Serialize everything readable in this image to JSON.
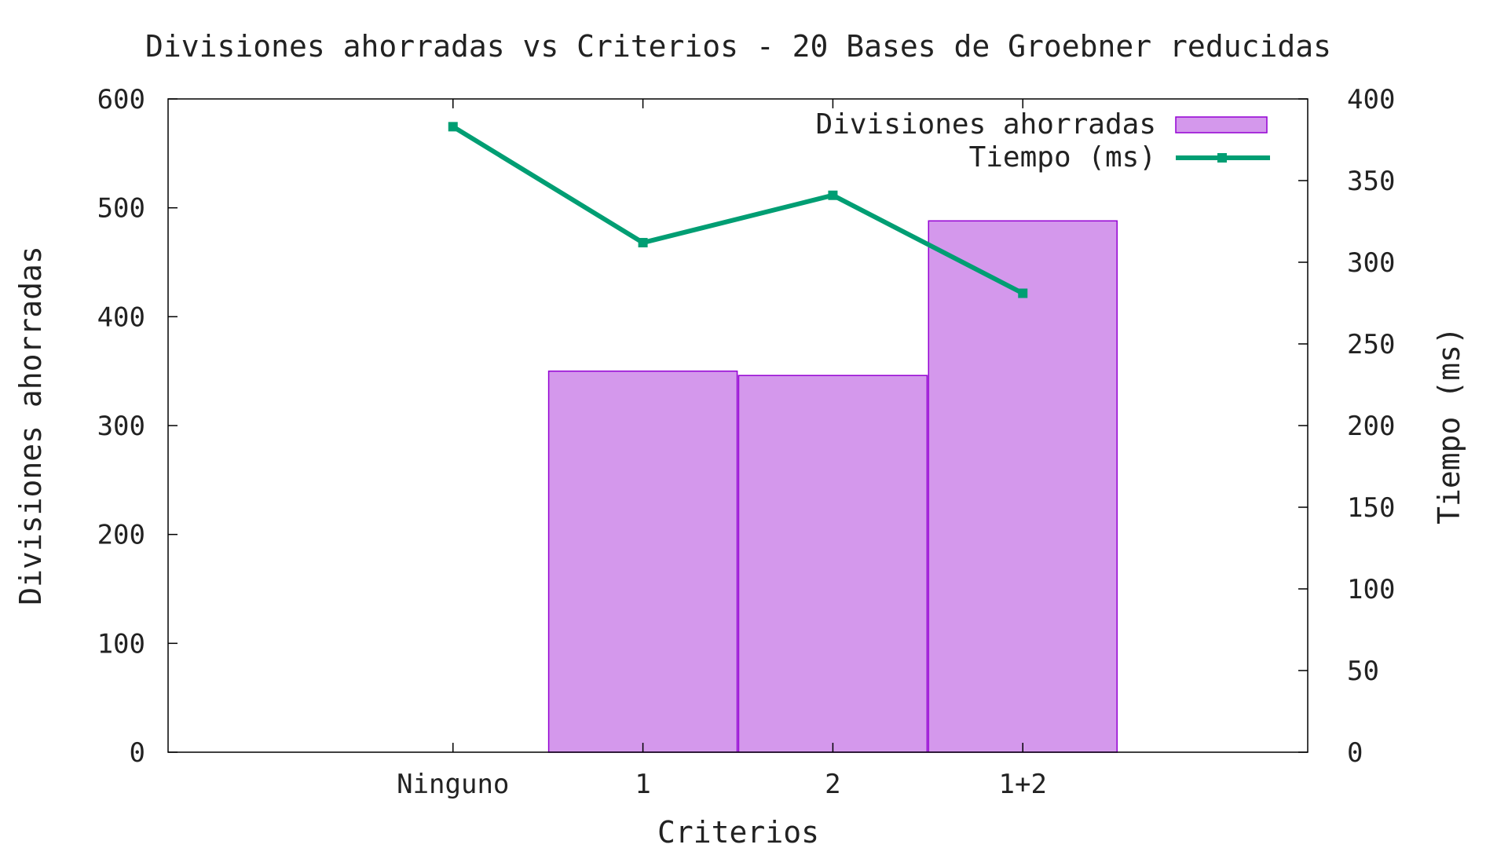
{
  "chart_data": {
    "type": "bar",
    "title": "Divisiones ahorradas vs Criterios - 20 Bases de Groebner reducidas",
    "xlabel": "Criterios",
    "ylabel": "Divisiones ahorradas",
    "y2label": "Tiempo (ms)",
    "categories": [
      "Ninguno",
      "1",
      "2",
      "1+2"
    ],
    "ylim": [
      0,
      600
    ],
    "yticks": [
      0,
      100,
      200,
      300,
      400,
      500,
      600
    ],
    "y2lim": [
      0,
      400
    ],
    "y2ticks": [
      0,
      50,
      100,
      150,
      200,
      250,
      300,
      350,
      400
    ],
    "grid": false,
    "legend_position": "top-right",
    "series": [
      {
        "name": "Divisiones ahorradas",
        "type": "bar",
        "axis": "left",
        "values": [
          0,
          350,
          346,
          488
        ],
        "color": "#d498ec",
        "stroke": "#9400d3"
      },
      {
        "name": "Tiempo (ms)",
        "type": "line",
        "axis": "right",
        "values": [
          383,
          312,
          341,
          281
        ],
        "color": "#009e73",
        "marker": "square"
      }
    ]
  }
}
